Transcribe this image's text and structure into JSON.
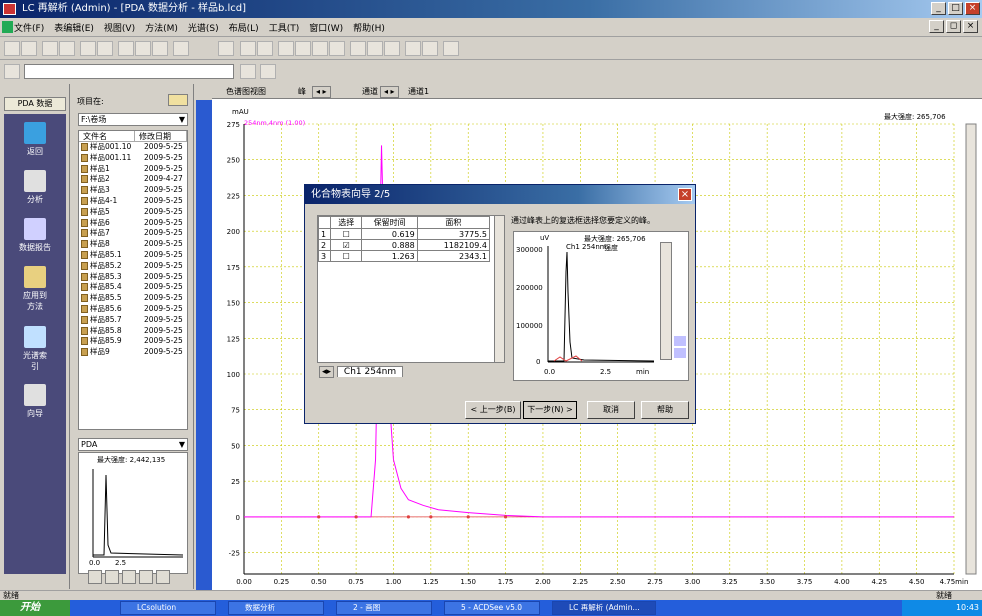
{
  "window": {
    "title": "LC 再解析 (Admin) - [PDA 数据分析 - 样品b.lcd]"
  },
  "menu": [
    "文件(F)",
    "表编辑(E)",
    "视图(V)",
    "方法(M)",
    "光谱(S)",
    "布局(L)",
    "工具(T)",
    "窗口(W)",
    "帮助(H)"
  ],
  "left_nav": {
    "header": "PDA 数据",
    "items": [
      {
        "label": "返回",
        "icon": "back-arrow-icon"
      },
      {
        "label": "分析",
        "icon": "analysis-icon"
      },
      {
        "label": "数据报告",
        "icon": "report-icon"
      },
      {
        "label": "应用到方法",
        "icon": "apply-method-icon"
      },
      {
        "label": "光谱索引",
        "icon": "spectrum-index-icon"
      },
      {
        "label": "向导",
        "icon": "wizard-icon"
      }
    ]
  },
  "project": {
    "label": "项目在:",
    "folder": "F:\\卷场",
    "columns": [
      "文件名",
      "修改日期"
    ],
    "files": [
      [
        "样品001.10",
        "2009-5-25"
      ],
      [
        "样品001.11",
        "2009-5-25"
      ],
      [
        "样品1",
        "2009-5-25"
      ],
      [
        "样品2",
        "2009-4-27"
      ],
      [
        "样品3",
        "2009-5-25"
      ],
      [
        "样品4-1",
        "2009-5-25"
      ],
      [
        "样品5",
        "2009-5-25"
      ],
      [
        "样品6",
        "2009-5-25"
      ],
      [
        "样品7",
        "2009-5-25"
      ],
      [
        "样品8",
        "2009-5-25"
      ],
      [
        "样品85.1",
        "2009-5-25"
      ],
      [
        "样品85.2",
        "2009-5-25"
      ],
      [
        "样品85.3",
        "2009-5-25"
      ],
      [
        "样品85.4",
        "2009-5-25"
      ],
      [
        "样品85.5",
        "2009-5-25"
      ],
      [
        "样品85.6",
        "2009-5-25"
      ],
      [
        "样品85.7",
        "2009-5-25"
      ],
      [
        "样品85.8",
        "2009-5-25"
      ],
      [
        "样品85.9",
        "2009-5-25"
      ],
      [
        "样品9",
        "2009-5-25"
      ]
    ],
    "pda_select": "PDA",
    "mini_max_label": "最大强度: 2,442,135",
    "mini_ticks": [
      "0.0",
      "2.5"
    ]
  },
  "chart_window": {
    "title": "色谱图视图",
    "peak_label": "峰",
    "channel_label": "通道",
    "channel_value": "通道1",
    "max_label": "最大强度: 265,706",
    "unit": "mAU",
    "trace_label": "254nm,4nm (1.00)",
    "x_unit": "min"
  },
  "chart_data": {
    "type": "line",
    "ylabel": "mAU",
    "xlabel": "min",
    "xlim": [
      0.0,
      4.75
    ],
    "ylim": [
      -40,
      275
    ],
    "xticks": [
      "0.00",
      "0.25",
      "0.50",
      "0.75",
      "1.00",
      "1.25",
      "1.50",
      "1.75",
      "2.00",
      "2.25",
      "2.50",
      "2.75",
      "3.00",
      "3.25",
      "3.50",
      "3.75",
      "4.00",
      "4.25",
      "4.50",
      "4.75min"
    ],
    "yticks": [
      "275",
      "250",
      "225",
      "200",
      "175",
      "150",
      "125",
      "100",
      "75",
      "50",
      "25",
      "0",
      "-25"
    ],
    "series": [
      {
        "name": "254nm,4nm (1.00)",
        "color": "#ff00ff",
        "x": [
          0.0,
          0.85,
          0.88,
          0.9,
          0.92,
          0.95,
          0.98,
          1.0,
          1.05,
          1.1,
          1.2,
          1.3,
          1.5,
          1.75,
          2.0,
          4.75
        ],
        "y": [
          0,
          0,
          40,
          150,
          260,
          130,
          70,
          40,
          20,
          12,
          8,
          5,
          3,
          1,
          0,
          0
        ]
      }
    ]
  },
  "dialog": {
    "title": "化合物表向导 2/5",
    "columns": [
      "选择",
      "保留时间",
      "面积"
    ],
    "rows": [
      {
        "n": "1",
        "checked": false,
        "rt": "0.619",
        "area": "3775.5"
      },
      {
        "n": "2",
        "checked": true,
        "rt": "0.888",
        "area": "1182109.4"
      },
      {
        "n": "3",
        "checked": false,
        "rt": "1.263",
        "area": "2343.1"
      }
    ],
    "message": "通过峰表上的复选框选择您要定义的峰。",
    "tab_label": "Ch1 254nm",
    "mini_unit": "uV",
    "mini_max": "最大强度: 265,706",
    "mini_channel": "Ch1 254nm",
    "mini_intensity": "强度",
    "mini_yticks": [
      "300000",
      "200000",
      "100000",
      "0"
    ],
    "mini_xticks": [
      "0.0",
      "2.5",
      "min"
    ],
    "buttons": {
      "back": "< 上一步(B)",
      "next": "下一步(N) >",
      "cancel": "取消",
      "help": "帮助"
    }
  },
  "status": {
    "text": "就绪",
    "right": "就绪"
  },
  "taskbar": {
    "start": "开始",
    "tasks": [
      "LCsolution",
      "数据分析",
      "2 - 画图",
      "5 - ACDSee v5.0",
      "LC 再解析 (Admin..."
    ],
    "clock": "10:43"
  }
}
